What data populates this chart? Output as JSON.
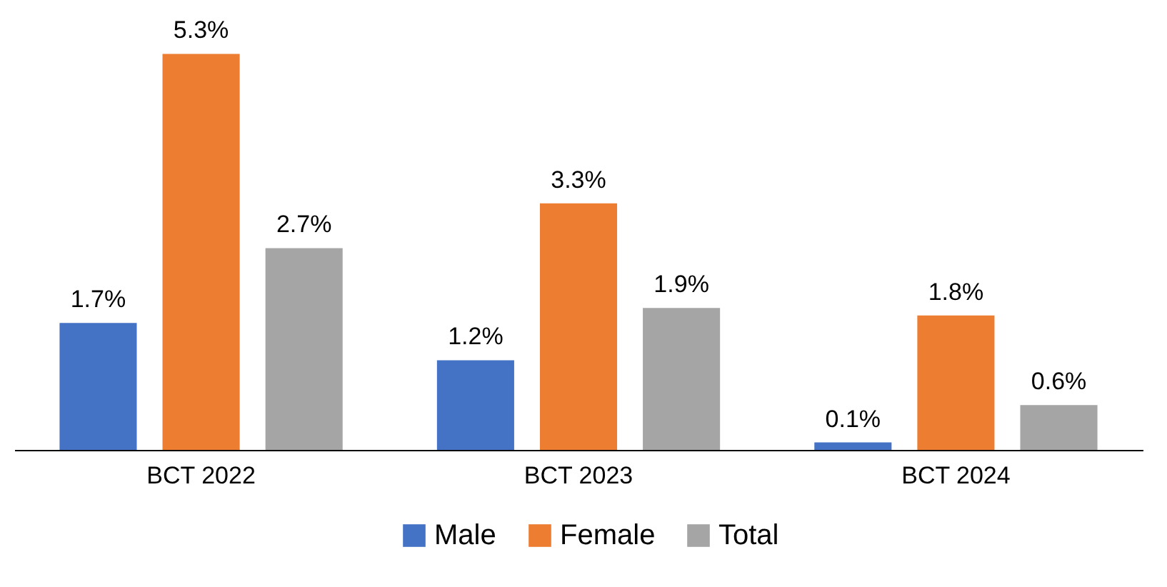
{
  "chart_data": {
    "type": "bar",
    "categories": [
      "BCT 2022",
      "BCT 2023",
      "BCT 2024"
    ],
    "series": [
      {
        "name": "Male",
        "color": "#4472c4",
        "values": [
          1.7,
          1.2,
          0.1
        ],
        "value_labels": [
          "1.7%",
          "1.2%",
          "0.1%"
        ]
      },
      {
        "name": "Female",
        "color": "#ed7d31",
        "values": [
          5.3,
          3.3,
          1.8
        ],
        "value_labels": [
          "5.3%",
          "3.3%",
          "1.8%"
        ]
      },
      {
        "name": "Total",
        "color": "#a5a5a5",
        "values": [
          2.7,
          1.9,
          0.6
        ],
        "value_labels": [
          "2.7%",
          "1.9%",
          "0.6%"
        ]
      }
    ],
    "legend": "bottom"
  }
}
